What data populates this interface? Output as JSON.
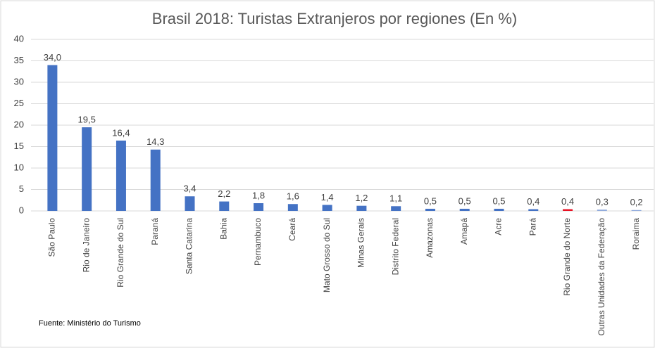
{
  "chart_data": {
    "type": "bar",
    "title": "Brasil 2018: Turistas Extranjeros por regiones (En %)",
    "source": "Fuente: Ministério do Turismo",
    "categories": [
      "São Paulo",
      "Rio de Janeiro",
      "Rio Grande do Sul",
      "Paraná",
      "Santa Catarina",
      "Bahia",
      "Pernambuco",
      "Ceará",
      "Mato Grosso do Sul",
      "Minas Gerais",
      "Distrito Federal",
      "Amazonas",
      "Amapá",
      "Acre",
      "Pará",
      "Rio Grande do Norte",
      "Outras Unidades da Federação",
      "Roraima"
    ],
    "values": [
      34.0,
      19.5,
      16.4,
      14.3,
      3.4,
      2.2,
      1.8,
      1.6,
      1.4,
      1.2,
      1.1,
      0.5,
      0.5,
      0.5,
      0.4,
      0.4,
      0.3,
      0.2
    ],
    "value_labels": [
      "34,0",
      "19,5",
      "16,4",
      "14,3",
      "3,4",
      "2,2",
      "1,8",
      "1,6",
      "1,4",
      "1,2",
      "1,1",
      "0,5",
      "0,5",
      "0,5",
      "0,4",
      "0,4",
      "0,3",
      "0,2"
    ],
    "colors": [
      "#4472c4",
      "#4472c4",
      "#4472c4",
      "#4472c4",
      "#4472c4",
      "#4472c4",
      "#4472c4",
      "#4472c4",
      "#4472c4",
      "#4472c4",
      "#4472c4",
      "#4472c4",
      "#4472c4",
      "#4472c4",
      "#4472c4",
      "#e81123",
      "#8faadc",
      "#8faadc"
    ],
    "ylim": [
      0,
      40
    ],
    "yticks": [
      0,
      5,
      10,
      15,
      20,
      25,
      30,
      35,
      40
    ],
    "grid": true
  }
}
